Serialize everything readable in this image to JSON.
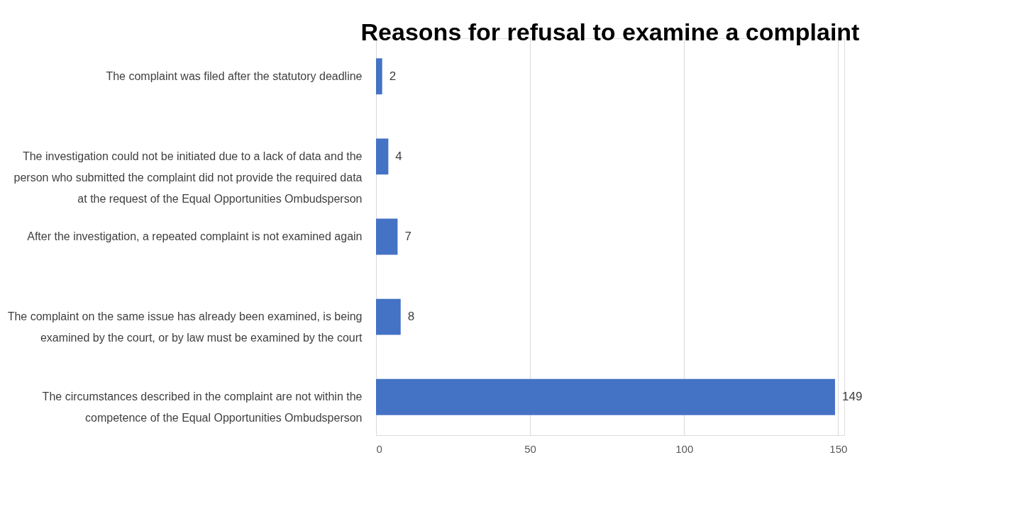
{
  "chart_data": {
    "type": "bar",
    "orientation": "horizontal",
    "title": "Reasons  for refusal to examine a complaint",
    "categories": [
      "The complaint was filed after the statutory deadline",
      "The investigation could not be initiated due to a lack of data and the person who submitted the complaint did not provide the required data at the request of the Equal Opportunities Ombudsperson",
      "After the investigation, a repeated complaint is not examined again",
      "The complaint on the same issue has already been examined, is being examined by the court, or by law must be examined by the court",
      "The circumstances described in the complaint are not within the competence of the Equal Opportunities Ombudsperson"
    ],
    "values": [
      2,
      4,
      7,
      8,
      149
    ],
    "color": "#4472c4",
    "xlim": [
      0,
      152
    ],
    "xticks": [
      0,
      50,
      100,
      150
    ],
    "grid": "x",
    "data_labels": true
  }
}
